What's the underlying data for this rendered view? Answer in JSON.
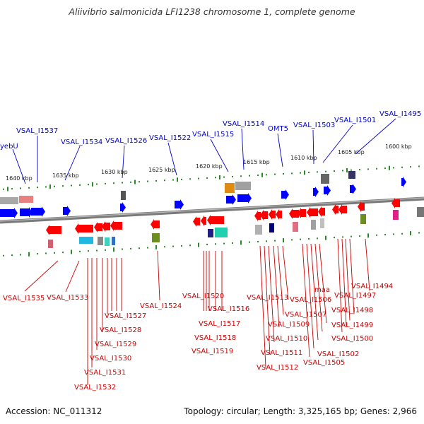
{
  "title": "Aliivibrio salmonicida LFI1238 chromosome 1, complete genome",
  "accession": "Accession: NC_011312",
  "summary": "Topology: circular; Length: 3,325,165 bp; Genes: 2,966",
  "colors": {
    "forward_gene": "#0000ff",
    "reverse_gene": "#ff0000",
    "top_label": "#0000cc",
    "bottom_label": "#cc0000",
    "tick_mark": "#2a8a2a",
    "backbone": "#888888"
  },
  "ticks": [
    "1640 kbp",
    "1635 kbp",
    "1630 kbp",
    "1625 kbp",
    "1620 kbp",
    "1615 kbp",
    "1610 kbp",
    "1605 kbp",
    "1600 kbp"
  ],
  "top_labels": [
    "yebU",
    "VSAL_I1537",
    "VSAL_I1534",
    "VSAL_I1526",
    "VSAL_I1522",
    "VSAL_I1515",
    "VSAL_I1514",
    "OMT5",
    "VSAL_I1503",
    "VSAL_I1501",
    "VSAL_I1495"
  ],
  "bottom_labels": [
    "VSAL_I1535",
    "VSAL_I1533",
    "VSAL_I1527",
    "VSAL_I1528",
    "VSAL_I1529",
    "VSAL_I1530",
    "VSAL_I1531",
    "VSAL_I1532",
    "VSAL_I1524",
    "VSAL_I1520",
    "VSAL_I1516",
    "VSAL_I1517",
    "VSAL_I1518",
    "VSAL_I1519",
    "VSAL_I1513",
    "VSAL_I1509",
    "VSAL_I1510",
    "VSAL_I1511",
    "VSAL_I1512",
    "maa",
    "VSAL_I1506",
    "VSAL_I1507",
    "VSAL_I1502",
    "VSAL_I1505",
    "VSAL_I1494",
    "VSAL_I1497",
    "VSAL_I1498",
    "VSAL_I1499",
    "VSAL_I1500"
  ]
}
